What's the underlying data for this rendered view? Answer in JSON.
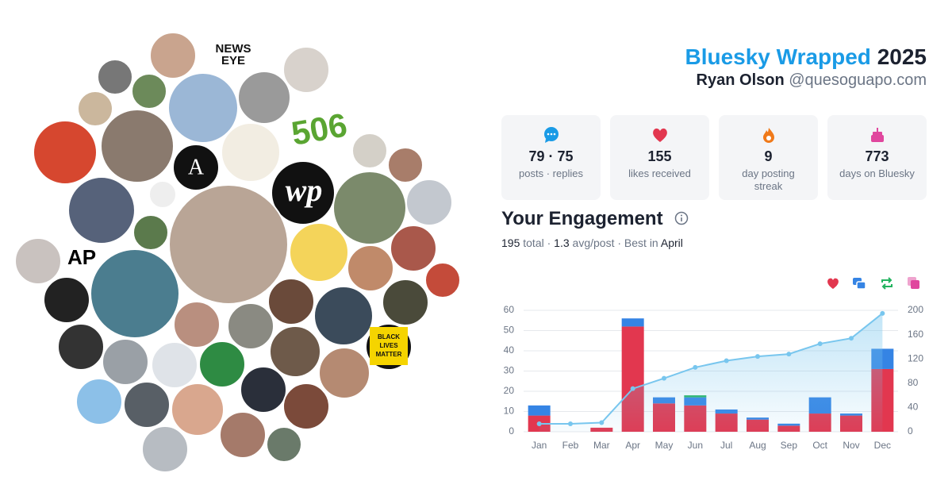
{
  "header": {
    "title": "Bluesky Wrapped",
    "year": 2025,
    "name": "Ryan Olson",
    "handle": "@quesoguapo.com"
  },
  "avatars": {
    "logos": [
      "NEWS",
      "EYE",
      "506",
      "A",
      "wp",
      "AP",
      "BLACK",
      "LIVES",
      "MATTER"
    ]
  },
  "separator": "·",
  "stats": [
    {
      "values": [
        79,
        75
      ],
      "label": "posts · replies"
    },
    {
      "value": 155,
      "label": "likes received"
    },
    {
      "value": 9,
      "label": "day posting streak"
    },
    {
      "value": 773,
      "label": "days on Bluesky"
    }
  ],
  "engagement": {
    "title": "Your Engagement",
    "total": 195,
    "total_label": "total",
    "avg": 1.3,
    "avg_label": "avg/post",
    "best_label": "Best in",
    "best": "April"
  },
  "chart_data": {
    "type": "bar",
    "categories": [
      "Jan",
      "Feb",
      "Mar",
      "Apr",
      "May",
      "Jun",
      "Jul",
      "Aug",
      "Sep",
      "Oct",
      "Nov",
      "Dec"
    ],
    "stacked": true,
    "series": [
      {
        "color": "#e2374f",
        "values": [
          8,
          0,
          2,
          52,
          14,
          13,
          9,
          6,
          3,
          9,
          8,
          31
        ]
      },
      {
        "color": "#3584e4",
        "values": [
          5,
          0,
          0,
          4,
          3,
          4,
          2,
          1,
          1,
          8,
          1,
          10
        ]
      },
      {
        "color": "#23b35f",
        "values": [
          0,
          0,
          0,
          0,
          0,
          1,
          0,
          0,
          0,
          0,
          0,
          0
        ]
      },
      {
        "color": "#e0479e",
        "values": [
          0,
          0,
          0,
          0,
          0,
          0,
          0,
          0,
          0,
          0,
          0,
          0
        ]
      },
      {
        "type": "line",
        "axis": "y2",
        "color": "#78c6ee",
        "area": true,
        "values": [
          13,
          13,
          15,
          71,
          88,
          106,
          117,
          124,
          128,
          145,
          154,
          195
        ]
      }
    ],
    "ylim": [
      0,
      60
    ],
    "yticks": [
      0,
      10,
      20,
      30,
      40,
      50,
      60
    ],
    "y2lim": [
      0,
      200
    ],
    "y2ticks": [
      0,
      40,
      80,
      120,
      160,
      200
    ],
    "grid": true,
    "legend": "top-right"
  }
}
